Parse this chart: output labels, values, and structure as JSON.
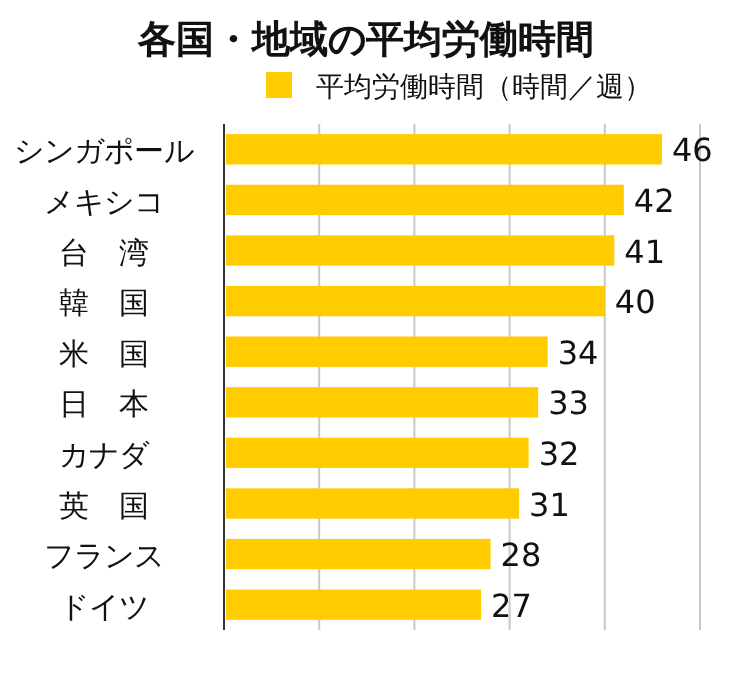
{
  "chart_data": {
    "type": "bar",
    "title": "各国・地域の平均労働時間",
    "orientation": "horizontal",
    "categories": [
      "シンガポール",
      "メキシコ",
      "台　湾",
      "韓　国",
      "米　国",
      "日　本",
      "カナダ",
      "英　国",
      "フランス",
      "ドイツ"
    ],
    "series": [
      {
        "name": "平均労働時間（時間／週）",
        "color": "#ffcc00",
        "values": [
          46,
          42,
          41,
          40,
          34,
          33,
          32,
          31,
          28,
          27
        ]
      }
    ],
    "xlim": [
      0,
      50
    ],
    "xticks": [
      {
        "value": 0,
        "label": null
      },
      {
        "value": 10,
        "label": null
      },
      {
        "value": 20,
        "label": null
      },
      {
        "value": 30,
        "label": null
      },
      {
        "value": 40,
        "label": null
      },
      {
        "value": 50,
        "label": null
      }
    ],
    "grid": "x",
    "legend": "top",
    "data_labels": true,
    "tick_labels": "y"
  }
}
